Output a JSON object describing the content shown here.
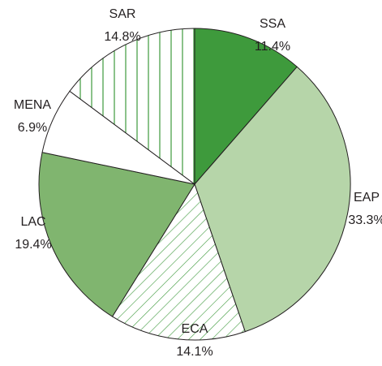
{
  "chart_data": {
    "type": "pie",
    "categories": [
      "SSA",
      "EAP",
      "ECA",
      "LAC",
      "MENA",
      "SAR"
    ],
    "values": [
      11.4,
      33.3,
      14.1,
      19.4,
      6.9,
      14.8
    ],
    "value_labels": [
      "11.4%",
      "33.3%",
      "14.1%",
      "19.4%",
      "6.9%",
      "14.8%"
    ],
    "colors": [
      "#3e9a3c",
      "#b6d5a9",
      "#3e9a3c",
      "#80b56f",
      "#ffffff",
      "#3e9a3c"
    ],
    "patterns": [
      null,
      null,
      "diagonal",
      null,
      null,
      "vertical"
    ]
  }
}
